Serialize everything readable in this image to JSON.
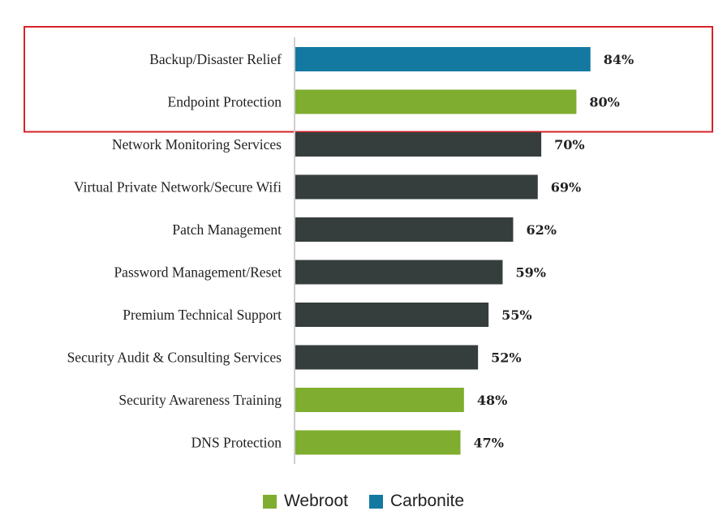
{
  "chart_data": {
    "type": "bar",
    "orientation": "horizontal",
    "categories": [
      "Backup/Disaster Relief",
      "Endpoint Protection",
      "Network Monitoring Services",
      "Virtual Private Network/Secure Wifi",
      "Patch Management",
      "Password Management/Reset",
      "Premium Technical Support",
      "Security Audit & Consulting Services",
      "Security Awareness Training",
      "DNS Protection"
    ],
    "values": [
      84,
      80,
      70,
      69,
      62,
      59,
      55,
      52,
      48,
      47
    ],
    "value_labels": [
      "84%",
      "80%",
      "70%",
      "69%",
      "62%",
      "59%",
      "55%",
      "52%",
      "48%",
      "47%"
    ],
    "bar_groups": [
      "carbonite",
      "webroot",
      "other",
      "other",
      "other",
      "other",
      "other",
      "other",
      "webroot",
      "webroot"
    ],
    "highlighted_categories": [
      "Backup/Disaster Relief",
      "Endpoint Protection"
    ],
    "legend": [
      {
        "key": "webroot",
        "label": "Webroot",
        "color": "#7fad2f"
      },
      {
        "key": "carbonite",
        "label": "Carbonite",
        "color": "#1479a1"
      }
    ],
    "legend_position": "bottom",
    "colors": {
      "other": "#363e3d",
      "highlight_border": "#d6232a",
      "axis": "#cfcfcf"
    },
    "grid": false
  }
}
